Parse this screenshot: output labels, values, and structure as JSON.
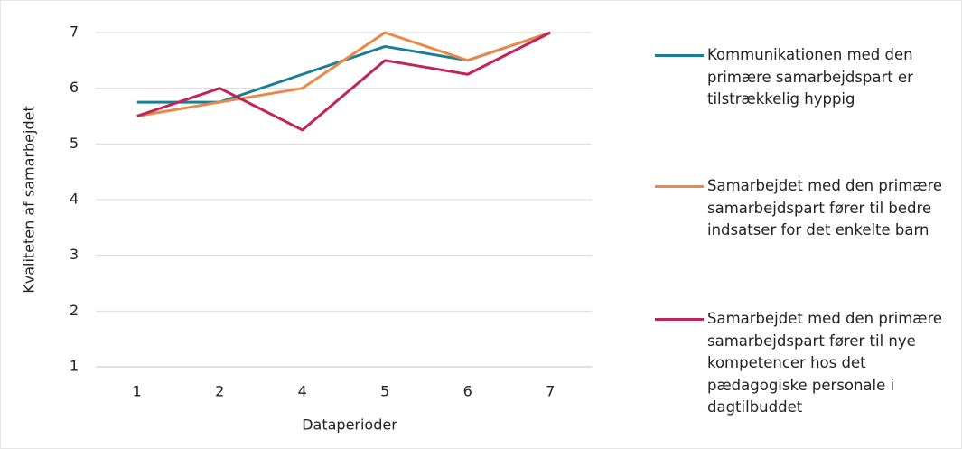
{
  "chart_data": {
    "type": "line",
    "x_label": "Dataperioder",
    "y_label": "Kvaliteten af samarbejdet",
    "categories": [
      "1",
      "2",
      "4",
      "5",
      "6",
      "7"
    ],
    "series": [
      {
        "name": "Kommunikationen med den primære samarbejdspart er tilstrækkelig hyppig",
        "color": "#1a7f94",
        "values": [
          5.75,
          5.75,
          6.25,
          6.75,
          6.5,
          7
        ]
      },
      {
        "name": "Samarbejdet med den primære samarbejdspart fører til bedre indsatser for det enkelte barn",
        "color": "#e8894a",
        "values": [
          5.5,
          5.75,
          6,
          7,
          6.5,
          7
        ]
      },
      {
        "name": "Samarbejdet med den primære samarbejdspart fører til nye kompetencer hos det pædagogiske personale i dagtilbuddet",
        "color": "#c0255a",
        "values": [
          5.5,
          6,
          5.25,
          6.5,
          6.25,
          7
        ]
      }
    ],
    "ylim": [
      1,
      7
    ],
    "yticks": [
      1,
      2,
      3,
      4,
      5,
      6,
      7
    ],
    "grid": true,
    "legend": "right"
  }
}
